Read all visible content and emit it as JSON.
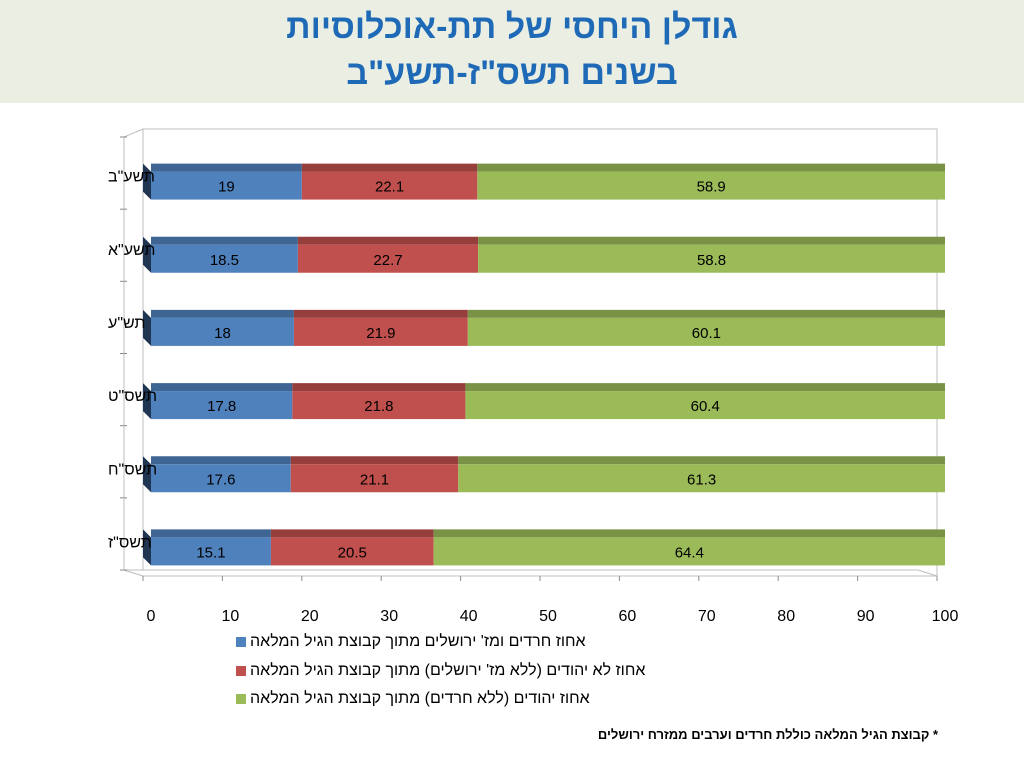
{
  "slide": {
    "title_line1": "גודלן היחסי של תת-אוכלוסיות",
    "title_line2": "בשנים תשס\"ז-תשע\"ב",
    "footnote": "* קבוצת הגיל המלאה כוללת חרדים וערבים ממזרח ירושלים"
  },
  "chart_data": {
    "type": "bar",
    "orientation": "horizontal",
    "stacked": true,
    "categories": [
      "תשע\"ב",
      "תשע\"א",
      "תש\"ע",
      "תשס\"ט",
      "תשס\"ח",
      "תשס\"ז"
    ],
    "series": [
      {
        "name": "אחוז חרדים ומז' ירושלים מתוך קבוצת הגיל המלאה",
        "color": "#4f81bd",
        "values": [
          19,
          18.5,
          18,
          17.8,
          17.6,
          15.1
        ]
      },
      {
        "name": "אחוז לא יהודים (ללא מז' ירושלים) מתוך קבוצת הגיל המלאה",
        "color": "#c0504d",
        "values": [
          22.1,
          22.7,
          21.9,
          21.8,
          21.1,
          20.5
        ]
      },
      {
        "name": "אחוז יהודים (ללא חרדים) מתוך קבוצת הגיל המלאה",
        "color": "#9bbb59",
        "values": [
          58.9,
          58.8,
          60.1,
          60.4,
          61.3,
          64.4
        ]
      }
    ],
    "xlim": [
      0,
      100
    ],
    "xticks": [
      0,
      10,
      20,
      30,
      40,
      50,
      60,
      70,
      80,
      90,
      100
    ],
    "grid": false,
    "legend_position": "bottom"
  }
}
